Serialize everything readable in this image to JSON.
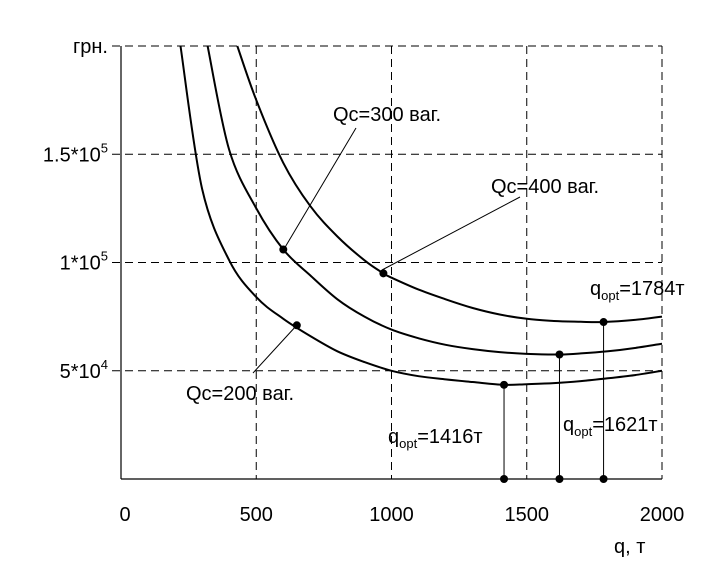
{
  "chart_data": {
    "type": "line",
    "xlabel": "q, т",
    "ylabel": "грн.",
    "xlim": [
      0,
      2000
    ],
    "ylim": [
      0,
      200000
    ],
    "grid": true,
    "x_ticks": [
      {
        "value": 0,
        "label": "0"
      },
      {
        "value": 500,
        "label": "500"
      },
      {
        "value": 1000,
        "label": "1000"
      },
      {
        "value": 1500,
        "label": "1500"
      },
      {
        "value": 2000,
        "label": "2000"
      }
    ],
    "y_ticks": [
      {
        "value": 50000,
        "label": "5*10",
        "exp": "4"
      },
      {
        "value": 100000,
        "label": "1*10",
        "exp": "5"
      },
      {
        "value": 150000,
        "label": "1.5*10",
        "exp": "5"
      }
    ],
    "series": [
      {
        "name": "Qc=200 ваг.",
        "color": "#000000",
        "x": [
          220,
          300,
          400,
          500,
          600,
          700,
          800,
          900,
          1000,
          1100,
          1200,
          1300,
          1416,
          1500,
          1600,
          1700,
          1800,
          1900,
          2000
        ],
        "y": [
          200000,
          134000,
          101000,
          84000,
          74000,
          66000,
          59000,
          54000,
          50000,
          47500,
          46000,
          44800,
          43500,
          43800,
          44300,
          45200,
          46500,
          48000,
          50000
        ],
        "opt": {
          "x": 1416,
          "y": 43500,
          "label": "opt",
          "value": "=1416т"
        }
      },
      {
        "name": "Qc=300 ваг.",
        "color": "#000000",
        "x": [
          320,
          400,
          500,
          600,
          700,
          800,
          900,
          1000,
          1100,
          1200,
          1300,
          1400,
          1500,
          1621,
          1700,
          1800,
          1900,
          2000
        ],
        "y": [
          200000,
          152000,
          125000,
          106000,
          94000,
          83000,
          75000,
          69000,
          65000,
          62000,
          60000,
          58600,
          57800,
          57500,
          58000,
          59000,
          60500,
          62500
        ],
        "opt": {
          "x": 1621,
          "y": 57500,
          "label": "opt",
          "value": "=1621т"
        }
      },
      {
        "name": "Qc=400 ваг.",
        "color": "#000000",
        "x": [
          430,
          500,
          600,
          700,
          800,
          900,
          970,
          1000,
          1100,
          1200,
          1300,
          1400,
          1500,
          1600,
          1700,
          1784,
          1900,
          2000
        ],
        "y": [
          200000,
          175000,
          146000,
          126000,
          112000,
          101000,
          95000,
          93000,
          87500,
          83000,
          79000,
          76000,
          74000,
          73000,
          72600,
          72500,
          73500,
          75000
        ],
        "opt": {
          "x": 1784,
          "y": 72500,
          "label": "opt",
          "value": "=1784т"
        }
      }
    ],
    "annotations": [
      {
        "id": "qc300",
        "text": "Qc=300 ваг.",
        "point": {
          "x": 600,
          "y": 106000
        }
      },
      {
        "id": "qc400",
        "text": "Qc=400 ваг.",
        "point": {
          "x": 970,
          "y": 95000
        }
      },
      {
        "id": "qc200",
        "text": "Qc=200 ваг.",
        "point": {
          "x": 650,
          "y": 71000
        }
      }
    ],
    "opt_labels": {
      "prefix": "q"
    }
  }
}
